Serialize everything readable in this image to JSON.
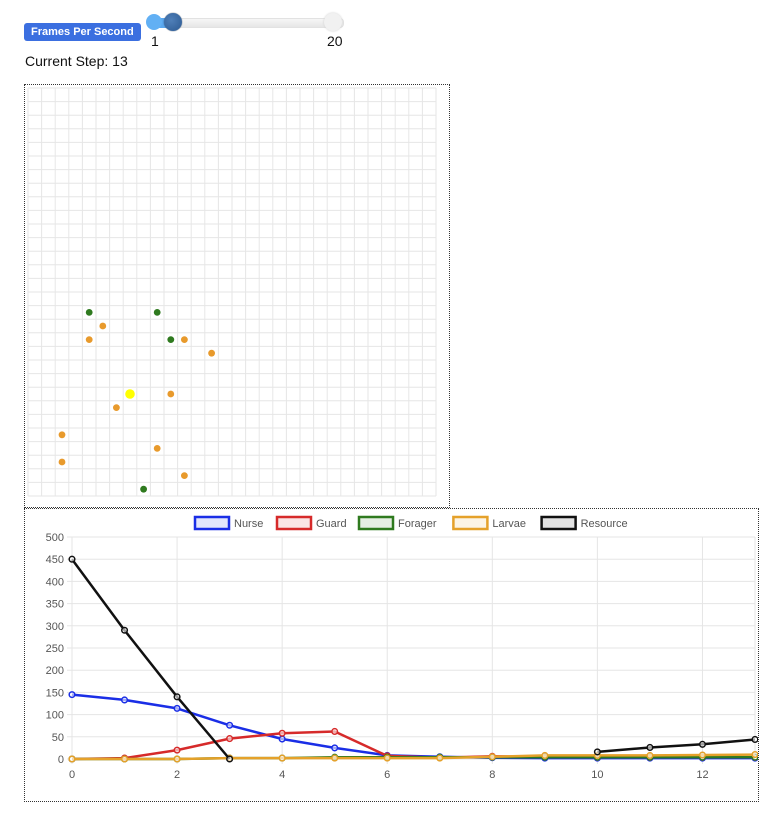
{
  "controls": {
    "fps_label": "Frames Per Second",
    "slider_min": "1",
    "slider_max": "20",
    "step_text": "Current Step: 13"
  },
  "grid": {
    "columns": 30,
    "rows": 30,
    "agents": [
      {
        "type": "Forager",
        "col": 4,
        "row": 16
      },
      {
        "type": "Forager",
        "col": 9,
        "row": 16
      },
      {
        "type": "Forager",
        "col": 10,
        "row": 18
      },
      {
        "type": "Forager",
        "col": 8,
        "row": 29
      },
      {
        "type": "Larvae",
        "col": 5,
        "row": 17
      },
      {
        "type": "Larvae",
        "col": 4,
        "row": 18
      },
      {
        "type": "Larvae",
        "col": 11,
        "row": 18
      },
      {
        "type": "Larvae",
        "col": 13,
        "row": 19
      },
      {
        "type": "Larvae",
        "col": 10,
        "row": 22
      },
      {
        "type": "Larvae",
        "col": 6,
        "row": 23
      },
      {
        "type": "Larvae",
        "col": 2,
        "row": 25
      },
      {
        "type": "Larvae",
        "col": 9,
        "row": 26
      },
      {
        "type": "Larvae",
        "col": 2,
        "row": 27
      },
      {
        "type": "Larvae",
        "col": 11,
        "row": 28
      },
      {
        "type": "Resource",
        "col": 7,
        "row": 22
      }
    ],
    "colors": {
      "Forager": "#2f7a1f",
      "Larvae": "#e89a2c",
      "Resource": "#ffff00"
    }
  },
  "chart_data": {
    "type": "line",
    "x": [
      0,
      1,
      2,
      3,
      4,
      5,
      6,
      7,
      8,
      9,
      10,
      11,
      12,
      13
    ],
    "ylim": [
      0,
      500
    ],
    "xlim": [
      0,
      13
    ],
    "y_ticks": [
      0,
      50,
      100,
      150,
      200,
      250,
      300,
      350,
      400,
      450,
      500
    ],
    "x_ticks": [
      0,
      2,
      4,
      6,
      8,
      10,
      12
    ],
    "y_tick_labels": [
      "0",
      "50",
      "100",
      "150",
      "200",
      "250",
      "300",
      "350",
      "400",
      "450",
      "500"
    ],
    "x_tick_labels": [
      "0",
      "2",
      "4",
      "6",
      "8",
      "10",
      "12"
    ],
    "legend_position": "top",
    "grid": true,
    "series": [
      {
        "name": "Nurse",
        "color": "#1a2ee6",
        "values": [
          145,
          133,
          114,
          76,
          45,
          25,
          8,
          5,
          3,
          2,
          2,
          2,
          2,
          2
        ]
      },
      {
        "name": "Guard",
        "color": "#d62a2a",
        "values": [
          0,
          2,
          20,
          46,
          58,
          62,
          7,
          3,
          6,
          5,
          4,
          4,
          4,
          4
        ]
      },
      {
        "name": "Forager",
        "color": "#2f7a1f",
        "values": [
          0,
          0,
          0,
          2,
          2,
          4,
          4,
          4,
          4,
          4,
          4,
          4,
          4,
          4
        ]
      },
      {
        "name": "Larvae",
        "color": "#e5a12a",
        "values": [
          0,
          0,
          0,
          2,
          2,
          2,
          2,
          2,
          5,
          8,
          8,
          8,
          9,
          10
        ]
      },
      {
        "name": "Resource",
        "color": "#111111",
        "values": [
          450,
          290,
          140,
          0,
          null,
          null,
          null,
          null,
          null,
          null,
          16,
          26,
          33,
          44
        ]
      }
    ]
  }
}
